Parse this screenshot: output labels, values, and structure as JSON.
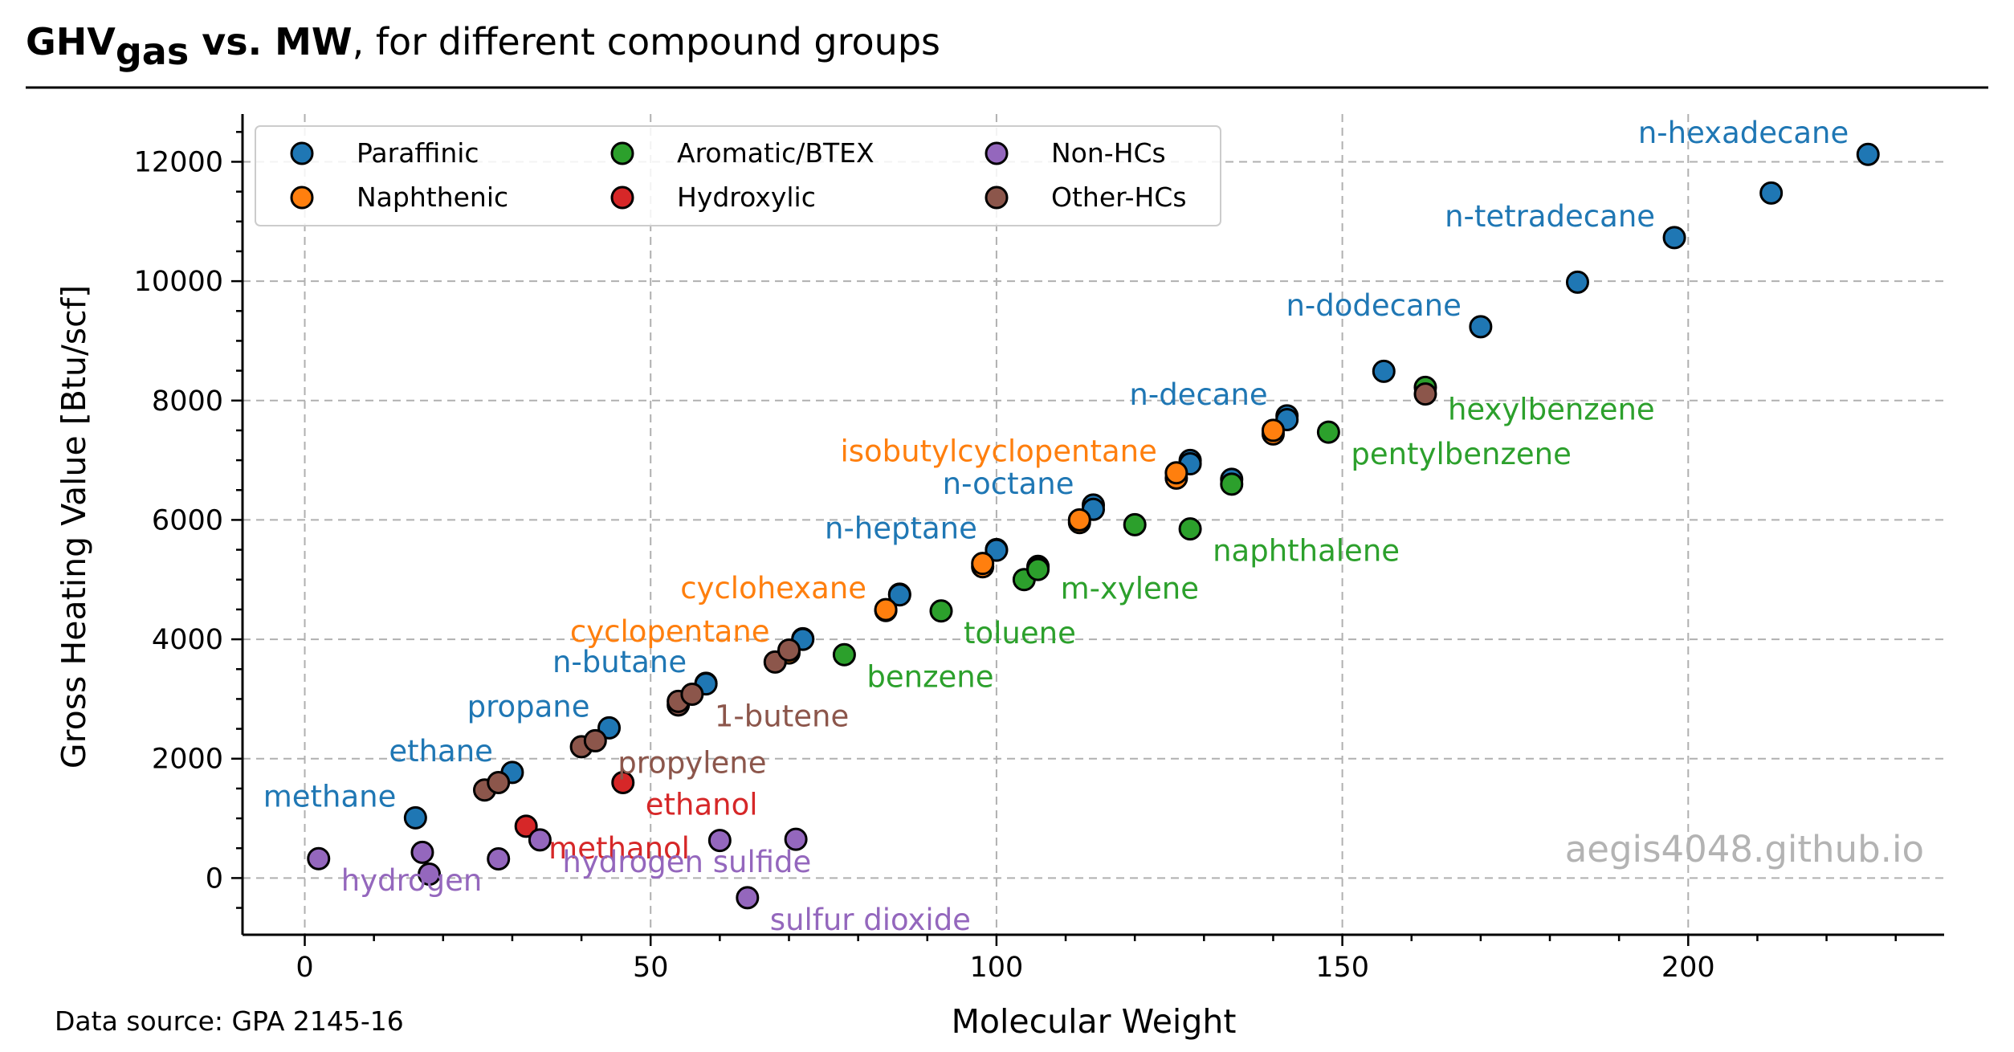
{
  "title": {
    "main": "GHV",
    "sub": "gas",
    "vs": " vs. MW",
    "rest": ", for different compound groups"
  },
  "source": "Data source: GPA 2145-16",
  "watermark": "aegis4048.github.io",
  "colors": {
    "Paraffinic": "#1f77b4",
    "Naphthenic": "#ff7f0e",
    "Aromatic/BTEX": "#2ca02c",
    "Hydroxylic": "#d62728",
    "Non-HCs": "#9467bd",
    "Other-HCs": "#8c564b"
  },
  "chart_data": {
    "type": "scatter",
    "xlabel": "Molecular Weight",
    "ylabel": "Gross Heating Value [Btu/scf]",
    "xlim": [
      -9,
      237
    ],
    "ylim": [
      -950,
      12800
    ],
    "xticks": [
      0,
      50,
      100,
      150,
      200
    ],
    "yticks": [
      0,
      2000,
      4000,
      6000,
      8000,
      10000,
      12000
    ],
    "xtick_labels": [
      "0",
      "50",
      "100",
      "150",
      "200"
    ],
    "ytick_labels": [
      "0",
      "2000",
      "4000",
      "6000",
      "8000",
      "10000",
      "12000"
    ],
    "grid": true,
    "legend_position": "top-left",
    "legend": [
      "Paraffinic",
      "Naphthenic",
      "Aromatic/BTEX",
      "Hydroxylic",
      "Non-HCs",
      "Other-HCs"
    ],
    "series": [
      {
        "name": "Paraffinic",
        "points": [
          [
            16,
            1010
          ],
          [
            30,
            1770
          ],
          [
            44,
            2516
          ],
          [
            58,
            3262
          ],
          [
            72,
            4009
          ],
          [
            86,
            4756
          ],
          [
            100,
            5503
          ],
          [
            114,
            6249
          ],
          [
            128,
            6996
          ],
          [
            142,
            7743
          ],
          [
            156,
            8490
          ],
          [
            170,
            9237
          ],
          [
            184,
            9983
          ],
          [
            198,
            10730
          ],
          [
            212,
            11477
          ],
          [
            226,
            12124
          ],
          [
            58,
            3252
          ],
          [
            72,
            3999
          ],
          [
            86,
            4745
          ],
          [
            100,
            5492
          ],
          [
            114,
            6178
          ],
          [
            128,
            6940
          ],
          [
            142,
            7680
          ],
          [
            134,
            6680
          ]
        ]
      },
      {
        "name": "Naphthenic",
        "points": [
          [
            70,
            3770
          ],
          [
            84,
            4482
          ],
          [
            98,
            5215
          ],
          [
            112,
            5955
          ],
          [
            126,
            6700
          ],
          [
            140,
            7440
          ],
          [
            84,
            4497
          ],
          [
            98,
            5270
          ],
          [
            112,
            6000
          ],
          [
            126,
            6790
          ],
          [
            140,
            7500
          ]
        ]
      },
      {
        "name": "Aromatic/BTEX",
        "points": [
          [
            78,
            3742
          ],
          [
            92,
            4475
          ],
          [
            106,
            5222
          ],
          [
            106,
            5209
          ],
          [
            104,
            5000
          ],
          [
            120,
            5920
          ],
          [
            128,
            5850
          ],
          [
            134,
            6600
          ],
          [
            148,
            7470
          ],
          [
            162,
            8220
          ],
          [
            106,
            5170
          ]
        ]
      },
      {
        "name": "Hydroxylic",
        "points": [
          [
            32,
            868
          ],
          [
            46,
            1600
          ]
        ]
      },
      {
        "name": "Non-HCs",
        "points": [
          [
            2,
            325
          ],
          [
            17,
            430
          ],
          [
            28,
            321
          ],
          [
            34,
            640
          ],
          [
            18,
            65
          ],
          [
            60,
            630
          ],
          [
            71,
            650
          ],
          [
            64,
            -330
          ]
        ]
      },
      {
        "name": "Other-HCs",
        "points": [
          [
            26,
            1475
          ],
          [
            28,
            1600
          ],
          [
            40,
            2200
          ],
          [
            42,
            2300
          ],
          [
            54,
            2900
          ],
          [
            54,
            2960
          ],
          [
            56,
            3080
          ],
          [
            68,
            3620
          ],
          [
            70,
            3820
          ],
          [
            162,
            8110
          ]
        ]
      }
    ],
    "labels": [
      {
        "text": "n-hexadecane",
        "series": "Paraffinic",
        "x": 226,
        "y": 12124,
        "side": "left"
      },
      {
        "text": "n-tetradecane",
        "series": "Paraffinic",
        "x": 198,
        "y": 10730,
        "side": "left"
      },
      {
        "text": "n-dodecane",
        "series": "Paraffinic",
        "x": 170,
        "y": 9237,
        "side": "left"
      },
      {
        "text": "n-decane",
        "series": "Paraffinic",
        "x": 142,
        "y": 7743,
        "side": "left"
      },
      {
        "text": "n-octane",
        "series": "Paraffinic",
        "x": 114,
        "y": 6249,
        "side": "left"
      },
      {
        "text": "n-heptane",
        "series": "Paraffinic",
        "x": 100,
        "y": 5503,
        "side": "left"
      },
      {
        "text": "n-butane",
        "series": "Paraffinic",
        "x": 58,
        "y": 3262,
        "side": "left"
      },
      {
        "text": "propane",
        "series": "Paraffinic",
        "x": 44,
        "y": 2516,
        "side": "left"
      },
      {
        "text": "ethane",
        "series": "Paraffinic",
        "x": 30,
        "y": 1770,
        "side": "left"
      },
      {
        "text": "methane",
        "series": "Paraffinic",
        "x": 16,
        "y": 1010,
        "side": "left"
      },
      {
        "text": "isobutylcyclopentane",
        "series": "Naphthenic",
        "x": 126,
        "y": 6790,
        "side": "left"
      },
      {
        "text": "cyclohexane",
        "series": "Naphthenic",
        "x": 84,
        "y": 4497,
        "side": "left"
      },
      {
        "text": "cyclopentane",
        "series": "Naphthenic",
        "x": 70,
        "y": 3770,
        "side": "left"
      },
      {
        "text": "hexylbenzene",
        "series": "Aromatic/BTEX",
        "x": 162,
        "y": 8220,
        "side": "right"
      },
      {
        "text": "pentylbenzene",
        "series": "Aromatic/BTEX",
        "x": 148,
        "y": 7470,
        "side": "right"
      },
      {
        "text": "naphthalene",
        "series": "Aromatic/BTEX",
        "x": 128,
        "y": 5850,
        "side": "right"
      },
      {
        "text": "m-xylene",
        "series": "Aromatic/BTEX",
        "x": 106,
        "y": 5222,
        "side": "right"
      },
      {
        "text": "toluene",
        "series": "Aromatic/BTEX",
        "x": 92,
        "y": 4475,
        "side": "right"
      },
      {
        "text": "benzene",
        "series": "Aromatic/BTEX",
        "x": 78,
        "y": 3742,
        "side": "right"
      },
      {
        "text": "1-butene",
        "series": "Other-HCs",
        "x": 56,
        "y": 3080,
        "side": "right"
      },
      {
        "text": "propylene",
        "series": "Other-HCs",
        "x": 42,
        "y": 2300,
        "side": "right"
      },
      {
        "text": "ethanol",
        "series": "Hydroxylic",
        "x": 46,
        "y": 1600,
        "side": "right"
      },
      {
        "text": "methanol",
        "series": "Hydroxylic",
        "x": 32,
        "y": 868,
        "side": "right"
      },
      {
        "text": "hydrogen sulfide",
        "series": "Non-HCs",
        "x": 34,
        "y": 640,
        "side": "right"
      },
      {
        "text": "hydrogen",
        "series": "Non-HCs",
        "x": 2,
        "y": 325,
        "side": "right"
      },
      {
        "text": "sulfur dioxide",
        "series": "Non-HCs",
        "x": 64,
        "y": -330,
        "side": "right"
      }
    ]
  }
}
